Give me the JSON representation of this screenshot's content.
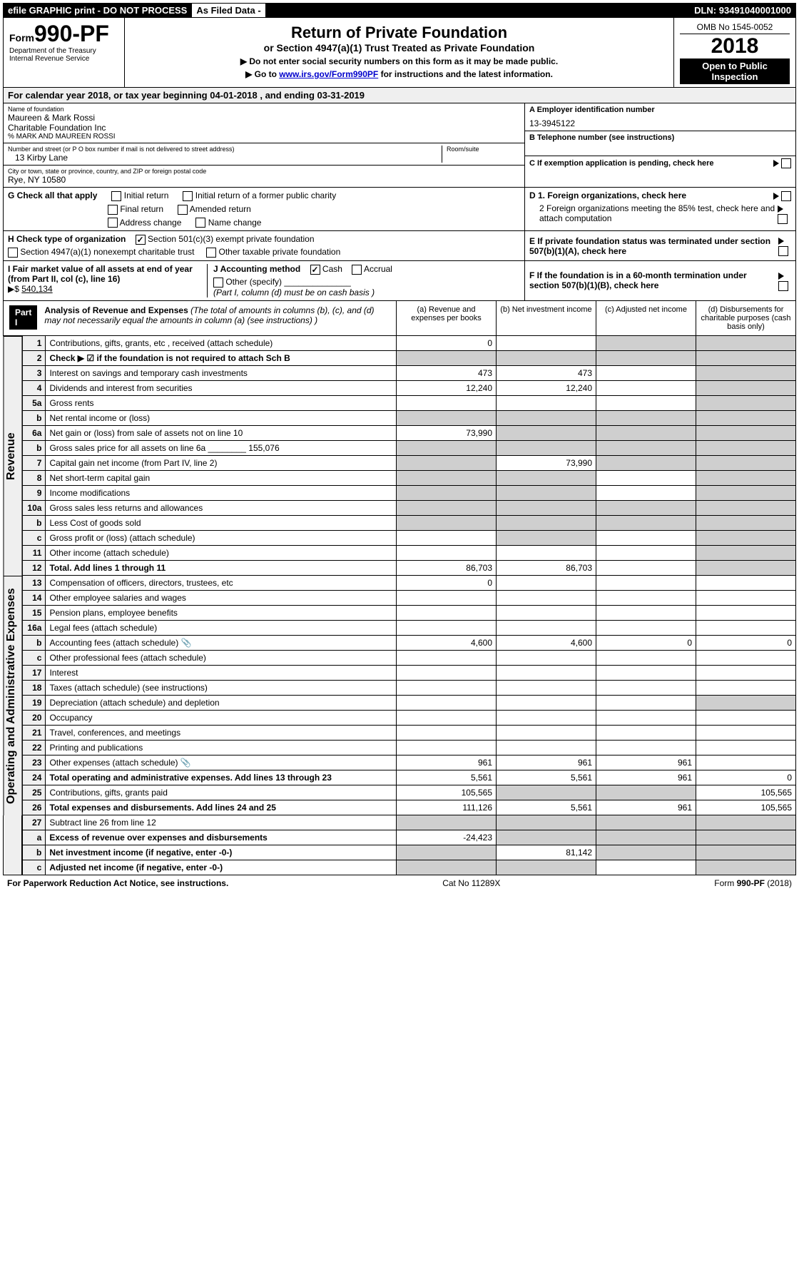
{
  "header": {
    "efile": "efile GRAPHIC print - DO NOT PROCESS",
    "asfiled": "As Filed Data -",
    "dln_label": "DLN:",
    "dln": "93491040001000",
    "form_prefix": "Form",
    "form_number": "990-PF",
    "dept1": "Department of the Treasury",
    "dept2": "Internal Revenue Service",
    "title": "Return of Private Foundation",
    "subtitle": "or Section 4947(a)(1) Trust Treated as Private Foundation",
    "warn1": "▶ Do not enter social security numbers on this form as it may be made public.",
    "warn2_pre": "▶ Go to ",
    "warn2_link": "www.irs.gov/Form990PF",
    "warn2_post": " for instructions and the latest information.",
    "omb": "OMB No 1545-0052",
    "year": "2018",
    "open": "Open to Public Inspection"
  },
  "calbar": {
    "text_pre": "For calendar year 2018, or tax year beginning ",
    "begin": "04-01-2018",
    "text_mid": " , and ending ",
    "end": "03-31-2019"
  },
  "id": {
    "name_lbl": "Name of foundation",
    "name1": "Maureen & Mark Rossi",
    "name2": "Charitable Foundation Inc",
    "care": "% MARK AND MAUREEN ROSSI",
    "addr_lbl": "Number and street (or P O box number if mail is not delivered to street address)",
    "room_lbl": "Room/suite",
    "addr": "13 Kirby Lane",
    "city_lbl": "City or town, state or province, country, and ZIP or foreign postal code",
    "city": "Rye, NY 10580",
    "A_lbl": "A Employer identification number",
    "A_val": "13-3945122",
    "B_lbl": "B Telephone number (see instructions)",
    "C_lbl": "C If exemption application is pending, check here"
  },
  "G": {
    "lbl": "G Check all that apply",
    "o1": "Initial return",
    "o2": "Initial return of a former public charity",
    "o3": "Final return",
    "o4": "Amended return",
    "o5": "Address change",
    "o6": "Name change"
  },
  "H": {
    "lbl": "H Check type of organization",
    "o1": "Section 501(c)(3) exempt private foundation",
    "o2": "Section 4947(a)(1) nonexempt charitable trust",
    "o3": "Other taxable private foundation"
  },
  "I": {
    "lbl": "I Fair market value of all assets at end of year (from Part II, col (c), line 16)",
    "val_lbl": "▶$",
    "val": "540,134"
  },
  "J": {
    "lbl": "J Accounting method",
    "o1": "Cash",
    "o2": "Accrual",
    "o3": "Other (specify)",
    "note": "(Part I, column (d) must be on cash basis )"
  },
  "D": {
    "d1": "D 1. Foreign organizations, check here",
    "d2": "2 Foreign organizations meeting the 85% test, check here and attach computation"
  },
  "E": "E If private foundation status was terminated under section 507(b)(1)(A), check here",
  "F": "F If the foundation is in a 60-month termination under section 507(b)(1)(B), check here",
  "part1": {
    "hdr": "Part I",
    "title": "Analysis of Revenue and Expenses",
    "title_note": " (The total of amounts in columns (b), (c), and (d) may not necessarily equal the amounts in column (a) (see instructions) )",
    "col_a": "(a) Revenue and expenses per books",
    "col_b": "(b) Net investment income",
    "col_c": "(c) Adjusted net income",
    "col_d": "(d) Disbursements for charitable purposes (cash basis only)",
    "side_rev": "Revenue",
    "side_exp": "Operating and Administrative Expenses",
    "rows": [
      {
        "n": "1",
        "t": "Contributions, gifts, grants, etc , received (attach schedule)",
        "a": "0",
        "b": "",
        "c": "",
        "d": "",
        "gray_c": true,
        "gray_d": true
      },
      {
        "n": "2",
        "t": "Check ▶ ☑ if the foundation is not required to attach Sch B",
        "a": "",
        "b": "",
        "c": "",
        "d": "",
        "gray_all": true,
        "bold": true,
        "gray_a": true,
        "gray_b": true,
        "gray_c": true,
        "gray_d": true
      },
      {
        "n": "3",
        "t": "Interest on savings and temporary cash investments",
        "a": "473",
        "b": "473",
        "c": "",
        "d": "",
        "gray_d": true
      },
      {
        "n": "4",
        "t": "Dividends and interest from securities",
        "a": "12,240",
        "b": "12,240",
        "c": "",
        "d": "",
        "gray_d": true
      },
      {
        "n": "5a",
        "t": "Gross rents",
        "a": "",
        "b": "",
        "c": "",
        "d": "",
        "gray_d": true
      },
      {
        "n": "b",
        "t": "Net rental income or (loss)",
        "a": "",
        "b": "",
        "c": "",
        "d": "",
        "gray_a": true,
        "gray_b": true,
        "gray_c": true,
        "gray_d": true
      },
      {
        "n": "6a",
        "t": "Net gain or (loss) from sale of assets not on line 10",
        "a": "73,990",
        "b": "",
        "c": "",
        "d": "",
        "gray_b": true,
        "gray_c": true,
        "gray_d": true
      },
      {
        "n": "b",
        "t": "Gross sales price for all assets on line 6a ________ 155,076",
        "a": "",
        "b": "",
        "c": "",
        "d": "",
        "gray_a": true,
        "gray_b": true,
        "gray_c": true,
        "gray_d": true
      },
      {
        "n": "7",
        "t": "Capital gain net income (from Part IV, line 2)",
        "a": "",
        "b": "73,990",
        "c": "",
        "d": "",
        "gray_a": true,
        "gray_c": true,
        "gray_d": true
      },
      {
        "n": "8",
        "t": "Net short-term capital gain",
        "a": "",
        "b": "",
        "c": "",
        "d": "",
        "gray_a": true,
        "gray_b": true,
        "gray_d": true
      },
      {
        "n": "9",
        "t": "Income modifications",
        "a": "",
        "b": "",
        "c": "",
        "d": "",
        "gray_a": true,
        "gray_b": true,
        "gray_d": true
      },
      {
        "n": "10a",
        "t": "Gross sales less returns and allowances",
        "a": "",
        "b": "",
        "c": "",
        "d": "",
        "gray_a": true,
        "gray_b": true,
        "gray_c": true,
        "gray_d": true
      },
      {
        "n": "b",
        "t": "Less Cost of goods sold",
        "a": "",
        "b": "",
        "c": "",
        "d": "",
        "gray_a": true,
        "gray_b": true,
        "gray_c": true,
        "gray_d": true
      },
      {
        "n": "c",
        "t": "Gross profit or (loss) (attach schedule)",
        "a": "",
        "b": "",
        "c": "",
        "d": "",
        "gray_b": true,
        "gray_d": true
      },
      {
        "n": "11",
        "t": "Other income (attach schedule)",
        "a": "",
        "b": "",
        "c": "",
        "d": "",
        "gray_d": true
      },
      {
        "n": "12",
        "t": "Total. Add lines 1 through 11",
        "a": "86,703",
        "b": "86,703",
        "c": "",
        "d": "",
        "bold": true,
        "gray_d": true
      }
    ],
    "exp_rows": [
      {
        "n": "13",
        "t": "Compensation of officers, directors, trustees, etc",
        "a": "0",
        "b": "",
        "c": "",
        "d": ""
      },
      {
        "n": "14",
        "t": "Other employee salaries and wages",
        "a": "",
        "b": "",
        "c": "",
        "d": ""
      },
      {
        "n": "15",
        "t": "Pension plans, employee benefits",
        "a": "",
        "b": "",
        "c": "",
        "d": ""
      },
      {
        "n": "16a",
        "t": "Legal fees (attach schedule)",
        "a": "",
        "b": "",
        "c": "",
        "d": ""
      },
      {
        "n": "b",
        "t": "Accounting fees (attach schedule)",
        "a": "4,600",
        "b": "4,600",
        "c": "0",
        "d": "0",
        "clip": true
      },
      {
        "n": "c",
        "t": "Other professional fees (attach schedule)",
        "a": "",
        "b": "",
        "c": "",
        "d": ""
      },
      {
        "n": "17",
        "t": "Interest",
        "a": "",
        "b": "",
        "c": "",
        "d": ""
      },
      {
        "n": "18",
        "t": "Taxes (attach schedule) (see instructions)",
        "a": "",
        "b": "",
        "c": "",
        "d": ""
      },
      {
        "n": "19",
        "t": "Depreciation (attach schedule) and depletion",
        "a": "",
        "b": "",
        "c": "",
        "d": "",
        "gray_d": true
      },
      {
        "n": "20",
        "t": "Occupancy",
        "a": "",
        "b": "",
        "c": "",
        "d": ""
      },
      {
        "n": "21",
        "t": "Travel, conferences, and meetings",
        "a": "",
        "b": "",
        "c": "",
        "d": ""
      },
      {
        "n": "22",
        "t": "Printing and publications",
        "a": "",
        "b": "",
        "c": "",
        "d": ""
      },
      {
        "n": "23",
        "t": "Other expenses (attach schedule)",
        "a": "961",
        "b": "961",
        "c": "961",
        "d": "",
        "clip": true
      },
      {
        "n": "24",
        "t": "Total operating and administrative expenses. Add lines 13 through 23",
        "a": "5,561",
        "b": "5,561",
        "c": "961",
        "d": "0",
        "bold": true
      },
      {
        "n": "25",
        "t": "Contributions, gifts, grants paid",
        "a": "105,565",
        "b": "",
        "c": "",
        "d": "105,565",
        "gray_b": true,
        "gray_c": true
      },
      {
        "n": "26",
        "t": "Total expenses and disbursements. Add lines 24 and 25",
        "a": "111,126",
        "b": "5,561",
        "c": "961",
        "d": "105,565",
        "bold": true
      }
    ],
    "sum_rows": [
      {
        "n": "27",
        "t": "Subtract line 26 from line 12",
        "a": "",
        "b": "",
        "c": "",
        "d": "",
        "gray_a": true,
        "gray_b": true,
        "gray_c": true,
        "gray_d": true
      },
      {
        "n": "a",
        "t": "Excess of revenue over expenses and disbursements",
        "a": "-24,423",
        "b": "",
        "c": "",
        "d": "",
        "bold": true,
        "gray_b": true,
        "gray_c": true,
        "gray_d": true
      },
      {
        "n": "b",
        "t": "Net investment income (if negative, enter -0-)",
        "a": "",
        "b": "81,142",
        "c": "",
        "d": "",
        "bold": true,
        "gray_a": true,
        "gray_c": true,
        "gray_d": true
      },
      {
        "n": "c",
        "t": "Adjusted net income (if negative, enter -0-)",
        "a": "",
        "b": "",
        "c": "",
        "d": "",
        "bold": true,
        "gray_a": true,
        "gray_b": true,
        "gray_d": true
      }
    ]
  },
  "footer": {
    "left": "For Paperwork Reduction Act Notice, see instructions.",
    "mid": "Cat No 11289X",
    "right": "Form 990-PF (2018)"
  }
}
